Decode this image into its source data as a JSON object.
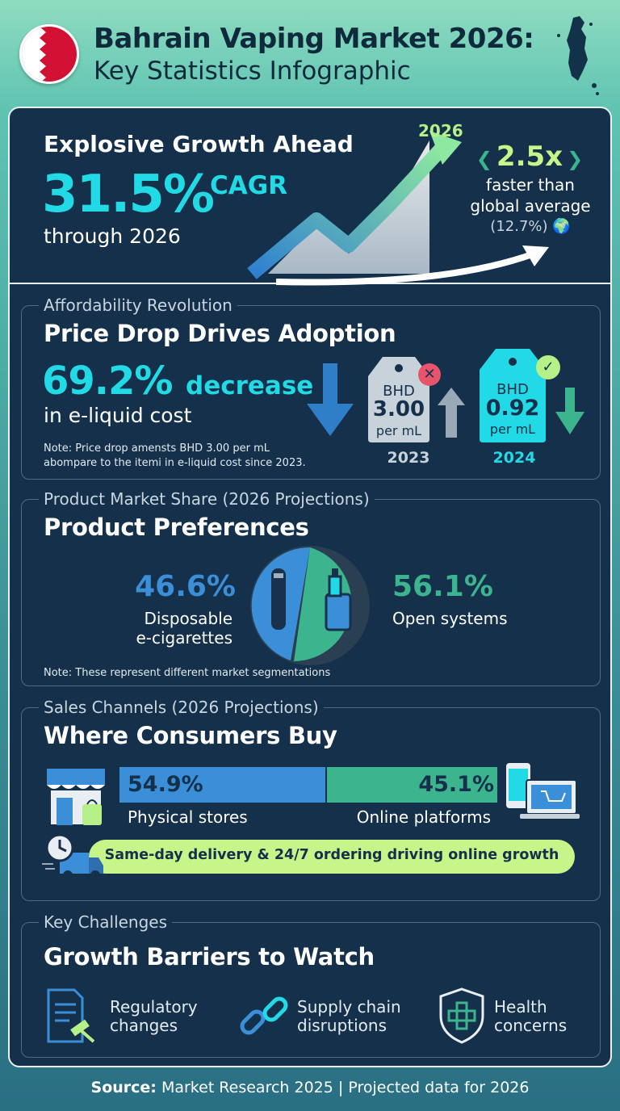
{
  "header": {
    "title_line1": "Bahrain Vaping Market 2026:",
    "title_line2": "Key Statistics Infographic"
  },
  "growth": {
    "title": "Explosive Growth Ahead",
    "cagr_value": "31.5%",
    "cagr_label": "CAGR",
    "through": "through 2026",
    "year_label": "2026",
    "multiplier": "2.5x",
    "multiplier_desc1": "faster than",
    "multiplier_desc2": "global average",
    "global_rate": "(12.7%)"
  },
  "price": {
    "kicker": "Affordability Revolution",
    "title": "Price Drop Drives Adoption",
    "decrease_value": "69.2%",
    "decrease_label": "decrease",
    "decrease_desc": "in e-liquid cost",
    "note_line1": "Note: Price drop amensts BHD 3.00 per mL",
    "note_line2": "abompare to the itemi in e-liquid cost since 2023.",
    "tag_old": {
      "currency": "BHD",
      "price": "3.00",
      "unit": "per mL",
      "year": "2023"
    },
    "tag_new": {
      "currency": "BHD",
      "price": "0.92",
      "unit": "per mL",
      "year": "2024"
    }
  },
  "products": {
    "kicker": "Product Market Share (2026 Projections)",
    "title": "Product Preferences",
    "disposable_value": "46.6%",
    "disposable_label1": "Disposable",
    "disposable_label2": "e-cigarettes",
    "open_value": "56.1%",
    "open_label": "Open systems",
    "note": "Note: These represent different market segmentations"
  },
  "channels": {
    "kicker": "Sales Channels (2026 Projections)",
    "title": "Where Consumers Buy",
    "physical_value": "54.9%",
    "physical_share": 54.9,
    "physical_label": "Physical stores",
    "online_value": "45.1%",
    "online_share": 45.1,
    "online_label": "Online platforms",
    "delivery_text": "Same-day delivery & 24/7 ordering driving online growth"
  },
  "challenges": {
    "kicker": "Key Challenges",
    "title": "Growth Barriers to Watch",
    "items": [
      {
        "line1": "Regulatory",
        "line2": "changes"
      },
      {
        "line1": "Supply chain",
        "line2": "disruptions"
      },
      {
        "line1": "Health",
        "line2": "concerns"
      }
    ]
  },
  "footer": {
    "source_label": "Source:",
    "source_text": "Market Research 2025 | Projected data for 2026"
  },
  "colors": {
    "navy": "#15304a",
    "cyan": "#22d9e6",
    "blue": "#3a8fd8",
    "green": "#3cb58f",
    "lime": "#c8f58a"
  }
}
